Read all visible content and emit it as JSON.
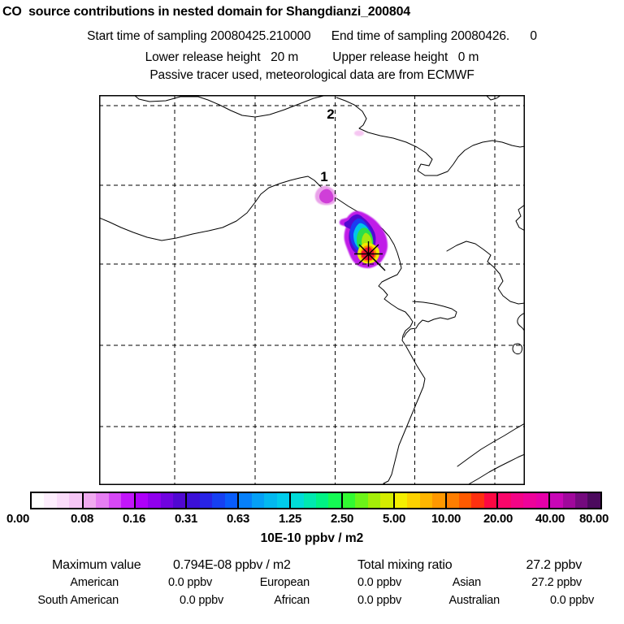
{
  "header": {
    "title": "CO  source contributions in nested domain for Shangdianzi_200804",
    "line2": "Start time of sampling 20080425.210000      End time of sampling 20080426.      0",
    "line3": "Lower release height   20 m          Upper release height   0 m",
    "line4": "Passive tracer used, meteorological data are from ECMWF"
  },
  "map": {
    "markers": [
      {
        "label": "1"
      },
      {
        "label": "2"
      }
    ]
  },
  "colorbar": {
    "labels": [
      "0.00",
      "0.08",
      "0.16",
      "0.31",
      "0.63",
      "1.25",
      "2.50",
      "5.00",
      "10.00",
      "20.00",
      "40.00",
      "80.00"
    ],
    "unit": "10E-10 ppbv / m2",
    "segments": [
      [
        "#ffffff",
        "#fdeefd",
        "#fadcfa",
        "#f6c6f6"
      ],
      [
        "#f0aaf0",
        "#e67ef2",
        "#d648f6",
        "#c216fa"
      ],
      [
        "#ae00fa",
        "#9000ee",
        "#7004e0",
        "#5008d2"
      ],
      [
        "#3c10d8",
        "#2824e6",
        "#1640f2",
        "#085cfc"
      ],
      [
        "#0680fa",
        "#04a0f6",
        "#02b8f0",
        "#00ccec"
      ],
      [
        "#00dcd8",
        "#00e8b0",
        "#00f284",
        "#14fa54"
      ],
      [
        "#32fa32",
        "#6cf418",
        "#a4ee08",
        "#d4ec00"
      ],
      [
        "#f4ee00",
        "#fcd200",
        "#ffb600",
        "#ff9800"
      ],
      [
        "#ff7e00",
        "#ff5a00",
        "#ff3010",
        "#fc0842"
      ],
      [
        "#fa066a",
        "#f40486",
        "#ee029a",
        "#e600a8"
      ],
      [
        "#c806b6",
        "#a0089c",
        "#740a7e",
        "#4c0a5e"
      ]
    ]
  },
  "stats": {
    "max_label": "Maximum value",
    "max_value": "0.794E-08 ppbv / m2",
    "total_label": "Total mixing ratio",
    "total_value": "27.2 ppbv",
    "regions": [
      {
        "label": "American",
        "value": "0.0 ppbv"
      },
      {
        "label": "European",
        "value": "0.0 ppbv"
      },
      {
        "label": "Asian",
        "value": "27.2 ppbv"
      },
      {
        "label": "South American",
        "value": "0.0 ppbv"
      },
      {
        "label": "African",
        "value": "0.0 ppbv"
      },
      {
        "label": "Australian",
        "value": "0.0 ppbv"
      }
    ]
  },
  "chart_data": {
    "type": "heatmap",
    "title": "CO source contributions in nested domain for Shangdianzi_200804",
    "station": "Shangdianzi_200804",
    "species": "CO",
    "start_time_of_sampling": "20080425.210000",
    "end_time_of_sampling": "20080426.0",
    "lower_release_height_m": 20,
    "upper_release_height_m": 0,
    "meteorology_note": "Passive tracer used, meteorological data are from ECMWF",
    "colorbar_levels": [
      0.0,
      0.08,
      0.16,
      0.31,
      0.63,
      1.25,
      2.5,
      5.0,
      10.0,
      20.0,
      40.0,
      80.0
    ],
    "colorbar_unit": "10E-10 ppbv / m2",
    "maximum_value": "0.794E-08 ppbv / m2",
    "total_mixing_ratio_ppbv": 27.2,
    "contributions_ppbv": {
      "American": 0.0,
      "European": 0.0,
      "Asian": 27.2,
      "South American": 0.0,
      "African": 0.0,
      "Australian": 0.0
    },
    "map_markers": [
      "1",
      "2"
    ],
    "plume": "single plume NE of receptor star, peak value at receptor, secondary weak blob near marker 1",
    "grid": true,
    "legend_position": "bottom"
  }
}
